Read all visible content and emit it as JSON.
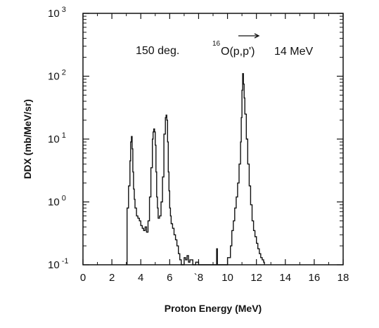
{
  "chart_data": {
    "type": "line",
    "title": "",
    "xlabel": "Proton Energy (MeV)",
    "ylabel": "DDX (mb/MeV/sr)",
    "xlim": [
      0,
      18
    ],
    "ylim": [
      0.1,
      1000
    ],
    "yscale": "log",
    "grid": false,
    "legend": "none",
    "x_ticks": [
      0,
      2,
      4,
      6,
      8,
      10,
      12,
      14,
      16,
      18
    ],
    "x_tick_labels": [
      "0",
      "2",
      "4",
      "6",
      "`8",
      "10",
      "12",
      "14",
      "16",
      "18"
    ],
    "y_ticks": [
      {
        "value": 0.1,
        "base": "10",
        "exp": "-1"
      },
      {
        "value": 1,
        "base": "10",
        "exp": "0"
      },
      {
        "value": 10,
        "base": "10",
        "exp": "1"
      },
      {
        "value": 100,
        "base": "10",
        "exp": "2"
      },
      {
        "value": 1000,
        "base": "10",
        "exp": "3"
      }
    ],
    "annotations": {
      "angle": "150 deg.",
      "reaction_mass": "16",
      "reaction_text": "O(p,p')",
      "energy": "14 MeV"
    },
    "series": [
      {
        "x": [
          3.05,
          3.05,
          3.15,
          3.25,
          3.3,
          3.35,
          3.4,
          3.45,
          3.5,
          3.55,
          3.6,
          3.7,
          3.8,
          3.9,
          4.0,
          4.1,
          4.2,
          4.3,
          4.4,
          4.5,
          4.6,
          4.7,
          4.8,
          4.85,
          4.9,
          4.95,
          5.0,
          5.05,
          5.1,
          5.15,
          5.2,
          5.3,
          5.4,
          5.5,
          5.6,
          5.7,
          5.75,
          5.8,
          5.85,
          5.9,
          5.95,
          6.0,
          6.05,
          6.1,
          6.2,
          6.3,
          6.4,
          6.5,
          6.6,
          6.7,
          6.8,
          6.9,
          7.0,
          7.1,
          7.2,
          7.3,
          7.4,
          7.6,
          7.8,
          8.0,
          8.5,
          9.0,
          9.25,
          9.3,
          9.35,
          9.4,
          9.7,
          10.0,
          10.2,
          10.3,
          10.4,
          10.5,
          10.6,
          10.7,
          10.8,
          10.9,
          10.95,
          11.0,
          11.05,
          11.1,
          11.15,
          11.2,
          11.3,
          11.4,
          11.5,
          11.6,
          11.7,
          11.8,
          11.9,
          12.0,
          12.1,
          12.2,
          12.3,
          12.4,
          12.5,
          12.55
        ],
        "y": [
          0.1,
          0.8,
          1.8,
          4.5,
          9.0,
          11.0,
          7.0,
          3.0,
          1.6,
          1.1,
          0.8,
          0.6,
          0.55,
          0.5,
          0.42,
          0.38,
          0.35,
          0.4,
          0.33,
          0.5,
          1.2,
          3.5,
          10.0,
          13.0,
          14.5,
          13.0,
          8.0,
          3.0,
          1.2,
          0.8,
          0.55,
          0.6,
          1.0,
          2.5,
          12.0,
          22.0,
          24.0,
          20.0,
          9.0,
          3.0,
          1.5,
          0.8,
          0.6,
          0.45,
          0.38,
          0.3,
          0.25,
          0.2,
          0.15,
          0.12,
          0.1,
          0.1,
          0.13,
          0.12,
          0.14,
          0.11,
          0.12,
          0.1,
          0.11,
          0.1,
          0.1,
          0.1,
          0.18,
          0.1,
          0.1,
          0.1,
          0.1,
          0.13,
          0.2,
          0.35,
          0.5,
          0.8,
          1.2,
          2.0,
          4.0,
          9.0,
          22.0,
          60.0,
          110.0,
          75.0,
          45.0,
          25.0,
          10.0,
          4.0,
          1.8,
          0.9,
          0.5,
          0.35,
          0.28,
          0.22,
          0.18,
          0.15,
          0.13,
          0.12,
          0.11,
          0.1
        ]
      }
    ]
  }
}
